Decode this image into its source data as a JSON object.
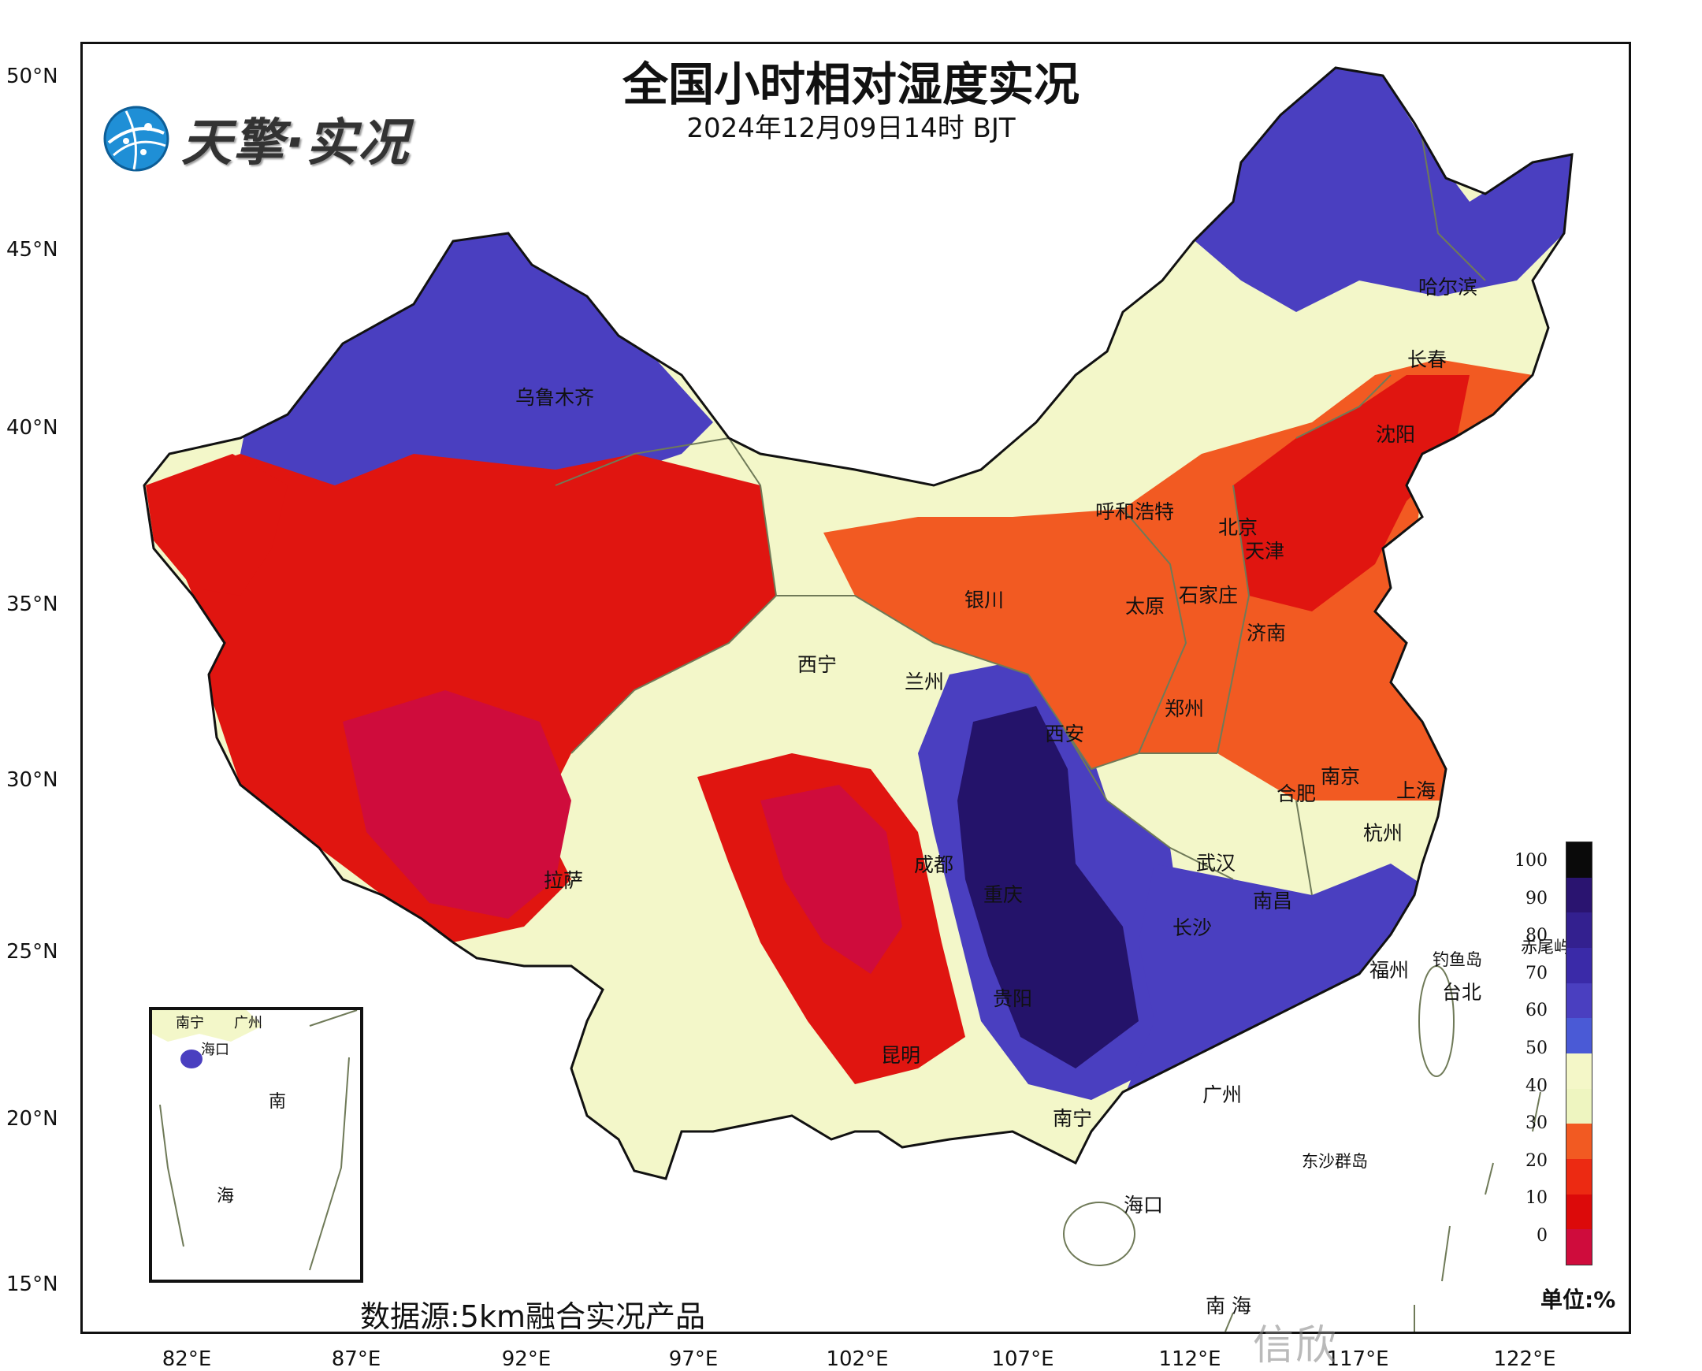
{
  "header": {
    "title": "全国小时相对湿度实况",
    "subtitle": "2024年12月09日14时 BJT",
    "brand": "天擎·实况"
  },
  "axes": {
    "lat_labels": [
      "50°N",
      "45°N",
      "40°N",
      "35°N",
      "30°N",
      "25°N",
      "20°N",
      "15°N"
    ],
    "lon_labels": [
      "82°E",
      "87°E",
      "92°E",
      "97°E",
      "102°E",
      "107°E",
      "112°E",
      "117°E",
      "122°E"
    ]
  },
  "cities": {
    "wulumuqi": "乌鲁木齐",
    "haerbin": "哈尔滨",
    "changchun": "长春",
    "shenyang": "沈阳",
    "huhehaote": "呼和浩特",
    "beijing": "北京",
    "tianjin": "天津",
    "yinchuan": "银川",
    "taiyuan": "太原",
    "shijiazhuang": "石家庄",
    "jinan": "济南",
    "xining": "西宁",
    "lanzhou": "兰州",
    "zhengzhou": "郑州",
    "xian": "西安",
    "nanjing": "南京",
    "hefei": "合肥",
    "shanghai": "上海",
    "hangzhou": "杭州",
    "wuhan": "武汉",
    "chengdu": "成都",
    "lasa": "拉萨",
    "chongqing": "重庆",
    "nanchang": "南昌",
    "changsha": "长沙",
    "fuzhou": "福州",
    "diaoyudao": "钓鱼岛",
    "chiweiyu": "赤尾屿",
    "taibei": "台北",
    "guiyang": "贵阳",
    "kunming": "昆明",
    "guangzhou": "广州",
    "nanning": "南宁",
    "dongsha": "东沙群岛",
    "haikou": "海口",
    "nanhai": "南 海"
  },
  "inset": {
    "nanning": "南宁",
    "guangzhou": "广州",
    "haikou": "海口",
    "nan": "南",
    "hai": "海"
  },
  "source": "数据源:5km融合实况产品",
  "legend": {
    "unit": "单位:%",
    "ticks": [
      "100",
      "90",
      "80",
      "70",
      "60",
      "50",
      "40",
      "30",
      "20",
      "10",
      "0"
    ],
    "colors": [
      "#0a0a0a",
      "#2a1470",
      "#33208f",
      "#3a2aa8",
      "#4a3fc0",
      "#4a5ad6",
      "#f4f7c8",
      "#eef5c0",
      "#f25a22",
      "#ec2a12",
      "#dc0a0a",
      "#cf0c3c"
    ]
  },
  "palette": {
    "dry_deep": "#cf0c3c",
    "dry_red": "#e01510",
    "dry_orange": "#f25a22",
    "mid": "#f3f7c9",
    "moist": "#4a3fc0",
    "wet": "#33208f",
    "very_wet": "#24136a",
    "border": "#6f7a58"
  },
  "watermark": "信欣"
}
